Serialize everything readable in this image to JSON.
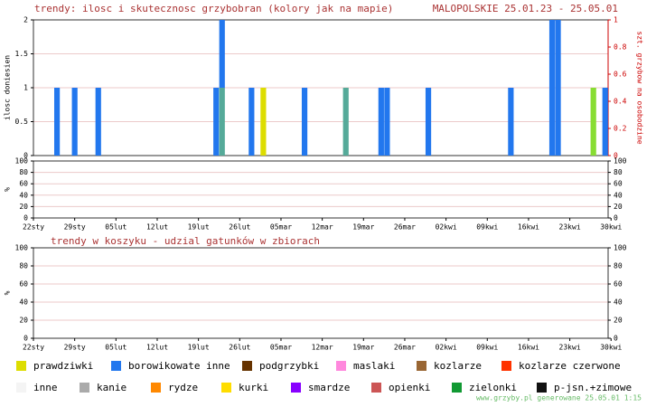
{
  "header": {
    "left": "trendy: ilosc i skutecznosc grzybobran (kolory jak na mapie)",
    "right": "MALOPOLSKIE 25.01.23 - 25.05.01"
  },
  "footer": "www.grzyby.pl generowane 25.05.01  1:15",
  "chart_data": [
    {
      "type": "bar",
      "ylabel": "ilosc doniesien",
      "y2label": "szt. grzybow na osobodzine",
      "ylim": [
        0,
        2
      ],
      "yticks": [
        0,
        0.5,
        1,
        1.5,
        2
      ],
      "y2lim": [
        0,
        1
      ],
      "y2ticks": [
        0,
        0.2,
        0.4,
        0.6,
        0.8,
        1
      ],
      "xlim": [
        0,
        97.5
      ],
      "grid": true,
      "series": [
        {
          "color": "#55aa99",
          "x": [
            32,
            53
          ],
          "values": [
            1,
            1
          ]
        },
        {
          "color": "#88dd33",
          "x": [
            95
          ],
          "values": [
            1
          ]
        },
        {
          "name": "prawdziwki",
          "color": "#dddd00",
          "x": [
            39
          ],
          "values": [
            1
          ]
        },
        {
          "name": "borowikowate inne",
          "color": "#2277ee",
          "x": [
            4,
            7,
            11,
            31,
            32,
            37,
            46,
            59,
            60,
            67,
            81,
            88,
            89,
            97
          ],
          "values": [
            1,
            1,
            1,
            1,
            1,
            1,
            1,
            1,
            1,
            1,
            1,
            2,
            2,
            1
          ]
        },
        {
          "name": "podgrzybki",
          "color": "#663300",
          "x": [],
          "values": []
        },
        {
          "name": "maslaki",
          "color": "#ff88dd",
          "x": [],
          "values": []
        },
        {
          "name": "kozlarze",
          "color": "#996633",
          "x": [],
          "values": []
        },
        {
          "name": "kozlarze czerwone",
          "color": "#ff3300",
          "x": [],
          "values": []
        },
        {
          "name": "inne",
          "color": "#f4f4f4",
          "x": [],
          "values": []
        },
        {
          "name": "kanie",
          "color": "#aaaaaa",
          "x": [],
          "values": []
        },
        {
          "name": "rydze",
          "color": "#ff8800",
          "x": [],
          "values": []
        },
        {
          "name": "kurki",
          "color": "#ffdd00",
          "x": [],
          "values": []
        },
        {
          "name": "smardze",
          "color": "#8800ff",
          "x": [],
          "values": []
        },
        {
          "name": "opienki",
          "color": "#cc5555",
          "x": [],
          "values": []
        },
        {
          "name": "zielonki",
          "color": "#119933",
          "x": [],
          "values": []
        },
        {
          "name": "p-jsn.+zimowe",
          "color": "#111111",
          "x": [],
          "values": []
        }
      ]
    },
    {
      "type": "bar",
      "ylabel": "%",
      "ylim": [
        0,
        100
      ],
      "yticks": [
        0,
        20,
        40,
        60,
        80,
        100
      ],
      "y2lim": [
        0,
        100
      ],
      "y2ticks": [
        0,
        20,
        40,
        60,
        80,
        100
      ],
      "xlim": [
        0,
        97.5
      ],
      "grid": true,
      "xticks": [
        {
          "value": 0,
          "label": "22sty"
        },
        {
          "value": 7,
          "label": "29sty"
        },
        {
          "value": 14,
          "label": "05lut"
        },
        {
          "value": 21,
          "label": "12lut"
        },
        {
          "value": 28,
          "label": "19lut"
        },
        {
          "value": 35,
          "label": "26lut"
        },
        {
          "value": 42,
          "label": "05mar"
        },
        {
          "value": 49,
          "label": "12mar"
        },
        {
          "value": 56,
          "label": "19mar"
        },
        {
          "value": 63,
          "label": "26mar"
        },
        {
          "value": 70,
          "label": "02kwi"
        },
        {
          "value": 77,
          "label": "09kwi"
        },
        {
          "value": 84,
          "label": "16kwi"
        },
        {
          "value": 91,
          "label": "23kwi"
        },
        {
          "value": 98,
          "label": "30kwi"
        }
      ],
      "series": []
    },
    {
      "type": "line",
      "title": "trendy w koszyku - udzial gatunków w zbiorach",
      "ylabel": "%",
      "ylim": [
        0,
        100
      ],
      "yticks": [
        0,
        20,
        40,
        60,
        80,
        100
      ],
      "y2lim": [
        0,
        100
      ],
      "y2ticks": [
        0,
        20,
        40,
        60,
        80,
        100
      ],
      "xlim": [
        0,
        97.5
      ],
      "grid": true,
      "xticks": [
        {
          "value": 0,
          "label": "22sty"
        },
        {
          "value": 7,
          "label": "29sty"
        },
        {
          "value": 14,
          "label": "05lut"
        },
        {
          "value": 21,
          "label": "12lut"
        },
        {
          "value": 28,
          "label": "19lut"
        },
        {
          "value": 35,
          "label": "26lut"
        },
        {
          "value": 42,
          "label": "05mar"
        },
        {
          "value": 49,
          "label": "12mar"
        },
        {
          "value": 56,
          "label": "19mar"
        },
        {
          "value": 63,
          "label": "26mar"
        },
        {
          "value": 70,
          "label": "02kwi"
        },
        {
          "value": 77,
          "label": "09kwi"
        },
        {
          "value": 84,
          "label": "16kwi"
        },
        {
          "value": 91,
          "label": "23kwi"
        },
        {
          "value": 98,
          "label": "30kwi"
        }
      ],
      "series": []
    }
  ]
}
